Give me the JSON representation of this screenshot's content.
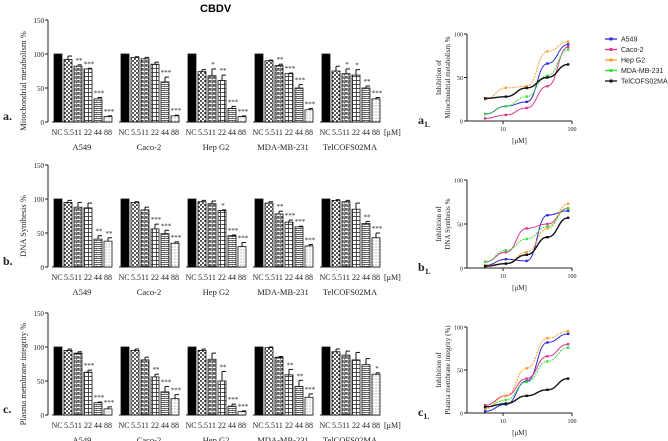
{
  "figure_title": "CBDV",
  "colors": {
    "A549": "#2b2bd6",
    "Caco-2": "#e0358a",
    "Hep G2": "#ff9a2e",
    "MDA-MB-231": "#33e033",
    "TelCOFS02MA": "#111111"
  },
  "chart_data": [
    {
      "type": "bar",
      "panel_label": "a.",
      "ylabel": "Mitochondrial metabolism %",
      "ylim": [
        0,
        150
      ],
      "yticks": [
        0,
        50,
        100,
        150
      ],
      "unit_label": "[μM]",
      "categories": [
        "NC",
        "5.5",
        "11",
        "22",
        "44",
        "88"
      ],
      "groups": [
        {
          "name": "A549",
          "values": [
            100,
            92,
            82,
            78,
            34,
            8
          ],
          "errors": [
            0,
            5,
            2,
            1,
            2,
            1
          ],
          "sig": [
            "",
            "",
            "**",
            "***",
            "***",
            "***"
          ]
        },
        {
          "name": "Caco-2",
          "values": [
            100,
            95,
            93,
            85,
            59,
            9
          ],
          "errors": [
            0,
            1,
            2,
            3,
            7,
            1
          ],
          "sig": [
            "",
            "",
            "",
            "",
            "***",
            "***"
          ]
        },
        {
          "name": "Hep G2",
          "values": [
            100,
            74,
            68,
            61,
            20,
            8
          ],
          "errors": [
            0,
            3,
            10,
            8,
            3,
            1
          ],
          "sig": [
            "",
            "",
            "*",
            "**",
            "***",
            "***"
          ]
        },
        {
          "name": "MDA-MB-231",
          "values": [
            100,
            90,
            83,
            71,
            50,
            18
          ],
          "errors": [
            0,
            1,
            2,
            1,
            5,
            2
          ],
          "sig": [
            "",
            "",
            "**",
            "***",
            "***",
            "***"
          ]
        },
        {
          "name": "TelCOFS02MA",
          "values": [
            100,
            75,
            71,
            69,
            50,
            34
          ],
          "errors": [
            0,
            7,
            7,
            8,
            3,
            2
          ],
          "sig": [
            "",
            "",
            "*",
            "*",
            "**",
            "***"
          ]
        }
      ]
    },
    {
      "type": "bar",
      "panel_label": "b.",
      "ylabel": "DNA Synthesis %",
      "ylim": [
        0,
        150
      ],
      "yticks": [
        0,
        50,
        100,
        150
      ],
      "unit_label": "[μM]",
      "categories": [
        "NC",
        "5.5",
        "11",
        "22",
        "44",
        "88"
      ],
      "groups": [
        {
          "name": "A549",
          "values": [
            100,
            95,
            88,
            87,
            41,
            38
          ],
          "errors": [
            0,
            3,
            7,
            7,
            5,
            5
          ],
          "sig": [
            "",
            "",
            "",
            "",
            "**",
            "**"
          ]
        },
        {
          "name": "Caco-2",
          "values": [
            100,
            95,
            84,
            56,
            49,
            35
          ],
          "errors": [
            0,
            1,
            4,
            7,
            5,
            2
          ],
          "sig": [
            "",
            "",
            "",
            "***",
            "***",
            "***"
          ]
        },
        {
          "name": "Hep G2",
          "values": [
            100,
            96,
            93,
            83,
            46,
            30
          ],
          "errors": [
            0,
            2,
            4,
            1,
            1,
            6
          ],
          "sig": [
            "",
            "",
            "",
            "*",
            "***",
            "***"
          ]
        },
        {
          "name": "MDA-MB-231",
          "values": [
            100,
            94,
            78,
            66,
            59,
            31
          ],
          "errors": [
            0,
            2,
            4,
            3,
            1,
            2
          ],
          "sig": [
            "",
            "",
            "**",
            "***",
            "***",
            "***"
          ]
        },
        {
          "name": "TelCOFS02MA",
          "values": [
            100,
            98,
            96,
            85,
            64,
            43
          ],
          "errors": [
            0,
            1,
            2,
            9,
            3,
            7
          ],
          "sig": [
            "",
            "",
            "",
            "",
            "**",
            "***"
          ]
        }
      ]
    },
    {
      "type": "bar",
      "panel_label": "c.",
      "ylabel": "Plasma membrane integrity %",
      "ylim": [
        0,
        150
      ],
      "yticks": [
        0,
        50,
        100,
        150
      ],
      "unit_label": "[μM]",
      "categories": [
        "NC",
        "5.5",
        "11",
        "22",
        "44",
        "88"
      ],
      "groups": [
        {
          "name": "A549",
          "values": [
            100,
            95,
            91,
            63,
            18,
            9
          ],
          "errors": [
            0,
            2,
            2,
            3,
            1,
            3
          ],
          "sig": [
            "",
            "",
            "",
            "***",
            "***",
            "***"
          ]
        },
        {
          "name": "Caco-2",
          "values": [
            100,
            95,
            81,
            56,
            34,
            24
          ],
          "errors": [
            0,
            2,
            4,
            4,
            8,
            6
          ],
          "sig": [
            "",
            "",
            "",
            "**",
            "***",
            "***"
          ]
        },
        {
          "name": "Hep G2",
          "values": [
            100,
            95,
            82,
            50,
            13,
            5
          ],
          "errors": [
            0,
            2,
            9,
            14,
            3,
            1
          ],
          "sig": [
            "",
            "",
            "",
            "**",
            "***",
            "***"
          ]
        },
        {
          "name": "MDA-MB-231",
          "values": [
            100,
            99,
            85,
            59,
            42,
            26
          ],
          "errors": [
            0,
            1,
            1,
            8,
            9,
            5
          ],
          "sig": [
            "",
            "",
            "",
            "**",
            "**",
            "***"
          ]
        },
        {
          "name": "TelCOFS02MA",
          "values": [
            100,
            93,
            88,
            81,
            74,
            60
          ],
          "errors": [
            0,
            4,
            6,
            11,
            9,
            2
          ],
          "sig": [
            "",
            "",
            "",
            "",
            "",
            "*"
          ]
        }
      ]
    },
    {
      "type": "line",
      "panel_label": "a",
      "panel_sub": "1.",
      "ylabel": [
        "Inhibition of",
        "Mitochondrial metabolism %"
      ],
      "xlabel": "[μM]",
      "xscale": "log",
      "xlim": [
        3,
        100
      ],
      "ylim": [
        0,
        100
      ],
      "xticks": [
        10,
        100
      ],
      "yticks": [
        0,
        50,
        100
      ],
      "x": [
        5.5,
        11,
        22,
        44,
        88
      ],
      "legend": "right",
      "series": [
        {
          "name": "A549",
          "values": [
            8,
            17,
            22,
            66,
            88
          ]
        },
        {
          "name": "Caco-2",
          "values": [
            3,
            7,
            15,
            40,
            85
          ]
        },
        {
          "name": "Hep G2",
          "values": [
            25,
            38,
            40,
            80,
            91
          ]
        },
        {
          "name": "MDA-MB-231",
          "values": [
            8,
            17,
            28,
            52,
            82
          ]
        },
        {
          "name": "TelCOFS02MA",
          "values": [
            26,
            28,
            38,
            50,
            65
          ]
        }
      ]
    },
    {
      "type": "line",
      "panel_label": "b",
      "panel_sub": "1.",
      "ylabel": [
        "Inhibition of",
        "DNA Synthesis %"
      ],
      "xlabel": "[μM]",
      "xscale": "log",
      "xlim": [
        3,
        100
      ],
      "ylim": [
        0,
        100
      ],
      "xticks": [
        10,
        100
      ],
      "yticks": [
        0,
        50,
        100
      ],
      "x": [
        5.5,
        11,
        22,
        44,
        88
      ],
      "series": [
        {
          "name": "A549",
          "values": [
            3,
            10,
            8,
            60,
            65
          ]
        },
        {
          "name": "Caco-2",
          "values": [
            7,
            18,
            45,
            50,
            68
          ]
        },
        {
          "name": "Hep G2",
          "values": [
            3,
            5,
            18,
            45,
            73
          ]
        },
        {
          "name": "MDA-MB-231",
          "values": [
            7,
            20,
            33,
            47,
            68
          ]
        },
        {
          "name": "TelCOFS02MA",
          "values": [
            2,
            5,
            15,
            35,
            57
          ]
        }
      ]
    },
    {
      "type": "line",
      "panel_label": "c",
      "panel_sub": "1.",
      "ylabel": [
        "Inhibition of",
        "Plasma membrane integrity (%)"
      ],
      "xlabel": "[μM]",
      "xscale": "log",
      "xlim": [
        3,
        100
      ],
      "ylim": [
        0,
        100
      ],
      "xticks": [
        10,
        100
      ],
      "yticks": [
        0,
        50,
        100
      ],
      "x": [
        5.5,
        11,
        22,
        44,
        88
      ],
      "series": [
        {
          "name": "A549",
          "values": [
            2,
            10,
            37,
            82,
            92
          ]
        },
        {
          "name": "Caco-2",
          "values": [
            9,
            20,
            40,
            66,
            80
          ]
        },
        {
          "name": "Hep G2",
          "values": [
            5,
            20,
            52,
            87,
            95
          ]
        },
        {
          "name": "MDA-MB-231",
          "values": [
            7,
            15,
            36,
            60,
            76
          ]
        },
        {
          "name": "TelCOFS02MA",
          "values": [
            7,
            11,
            20,
            27,
            40
          ]
        }
      ]
    }
  ]
}
